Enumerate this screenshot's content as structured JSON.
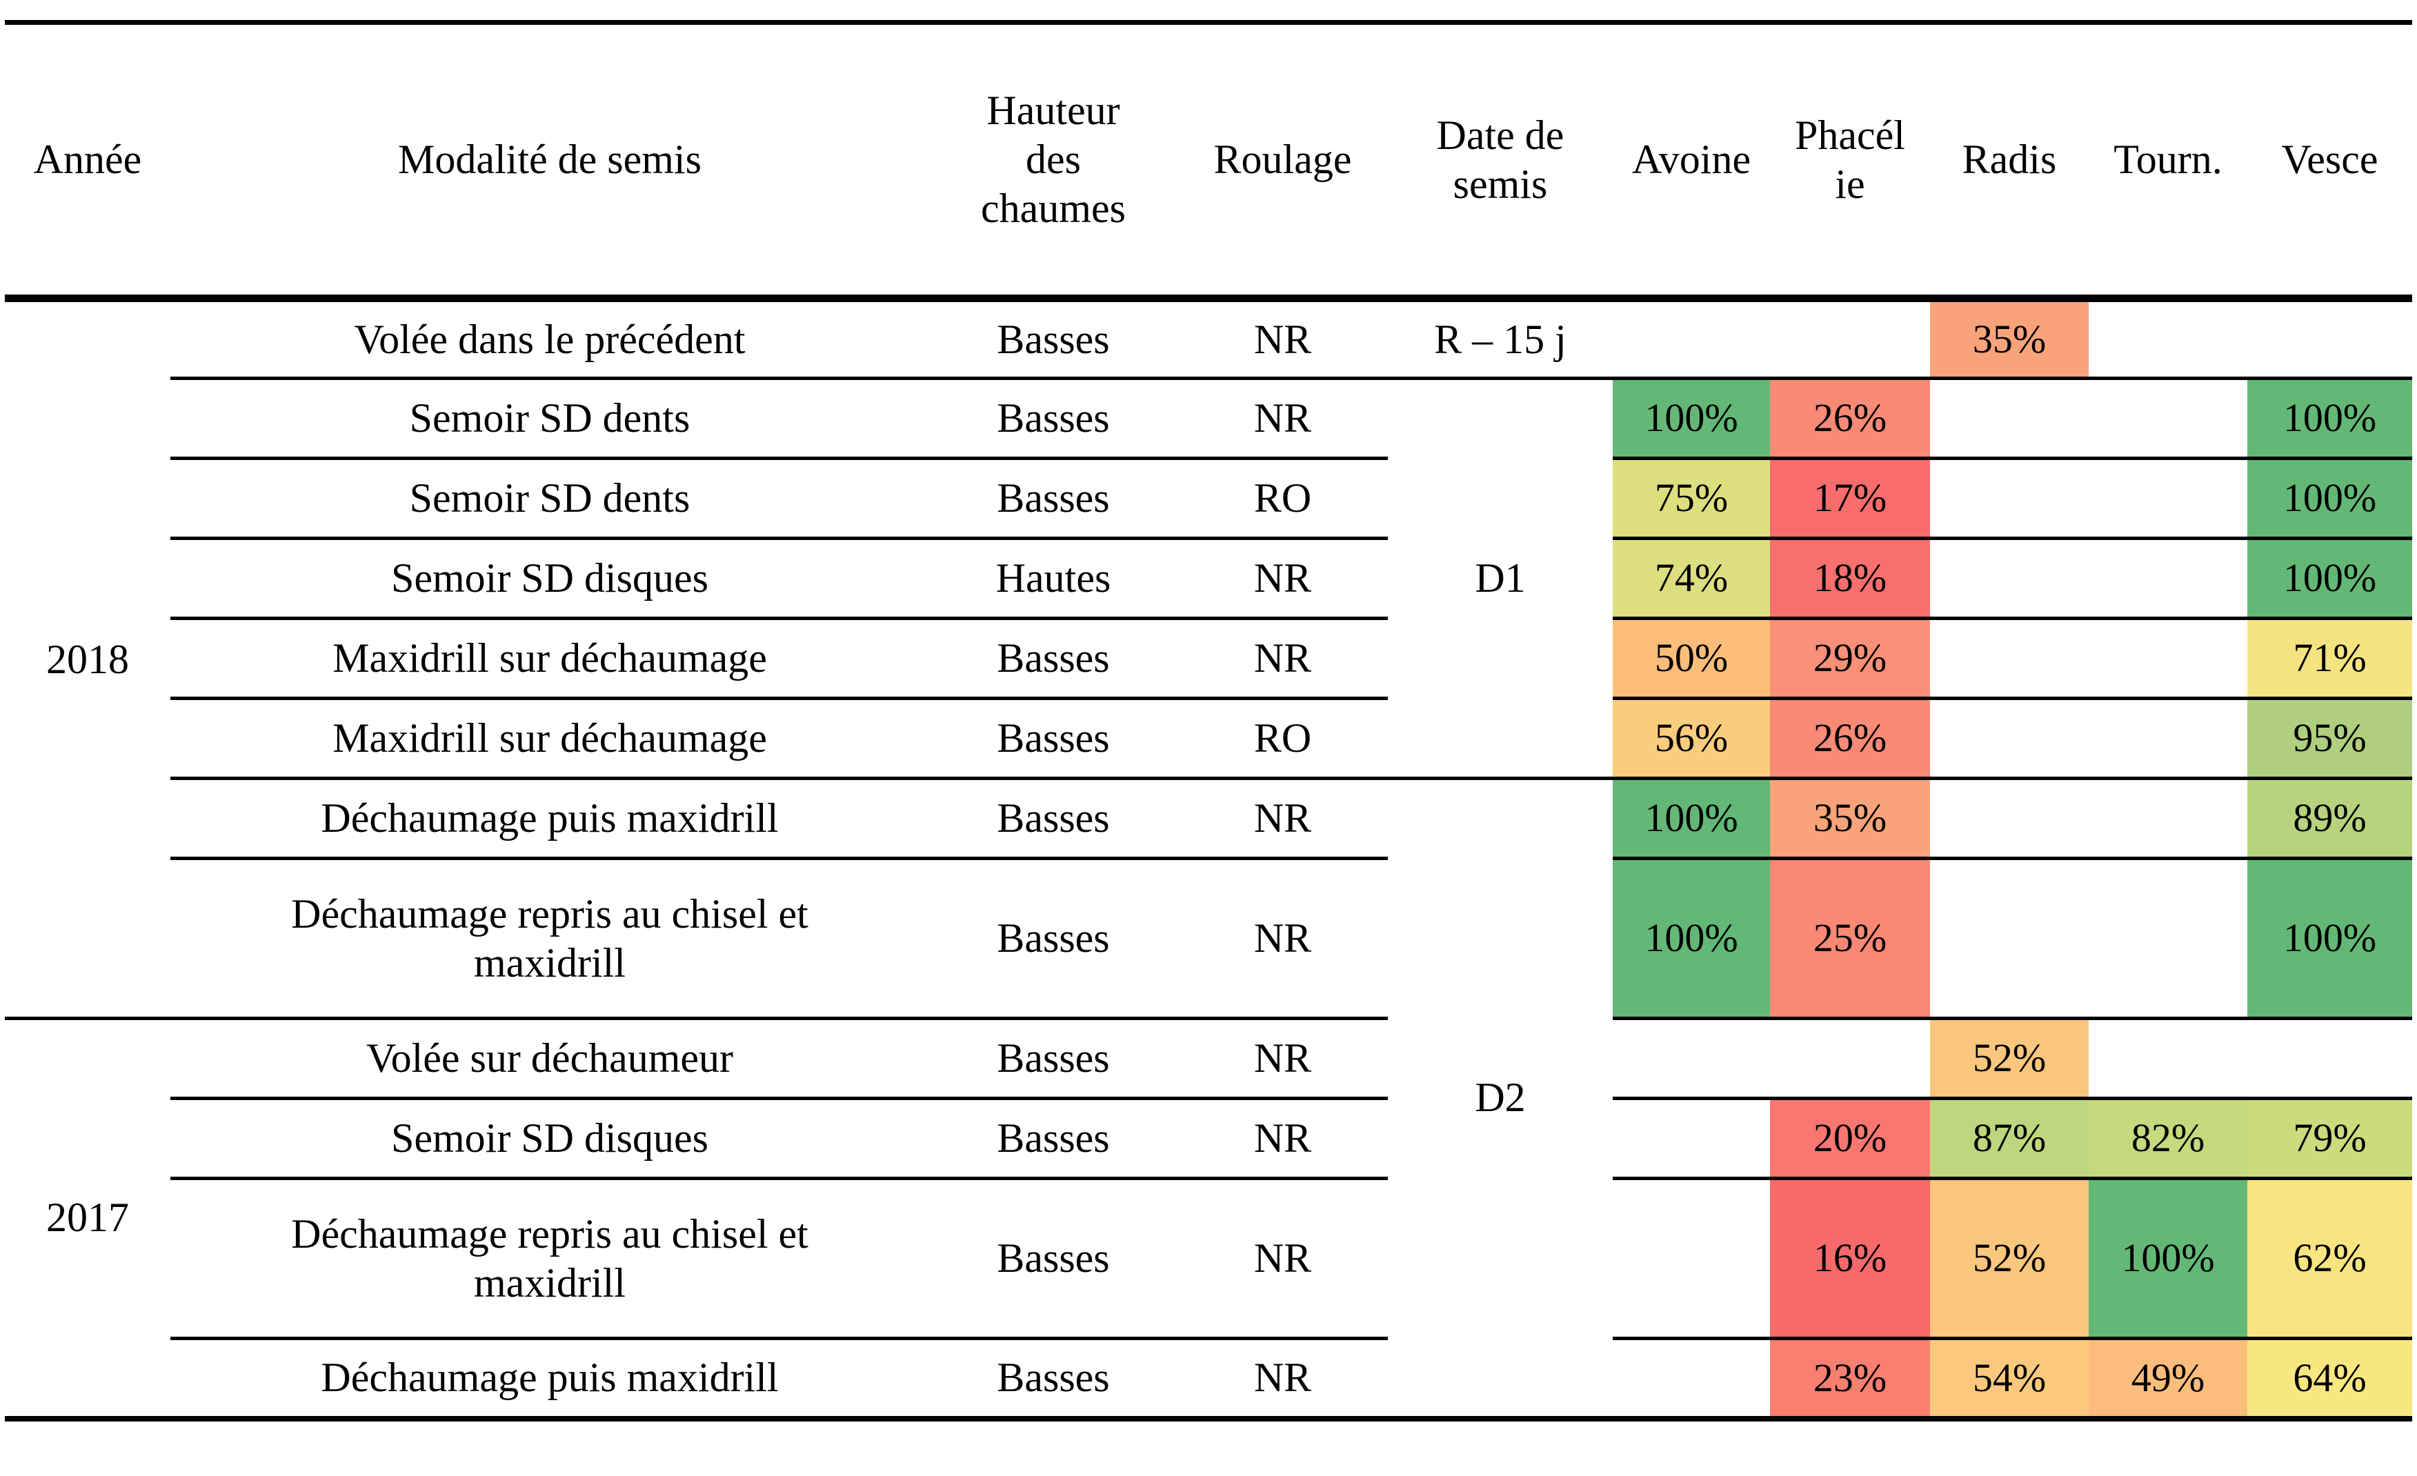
{
  "table": {
    "headers": {
      "annee": "Année",
      "modalite": "Modalité de semis",
      "hauteur": "Hauteur\ndes\nchaumes",
      "roulage": "Roulage",
      "date": "Date de\nsemis",
      "avoine": "Avoine",
      "phacelie": "Phacél\nie",
      "radis": "Radis",
      "tourn": "Tourn.",
      "vesce": "Vesce"
    },
    "year_groups": [
      {
        "label": "2018",
        "rows": 8
      },
      {
        "label": "2017",
        "rows": 4
      }
    ],
    "date_groups": [
      {
        "label": "R – 15 j",
        "rows": 1
      },
      {
        "label": "D1",
        "rows": 5
      },
      {
        "label": "D2",
        "rows": 6
      }
    ],
    "rows": [
      {
        "modalite": "Volée dans le précédent",
        "hauteur": "Basses",
        "roulage": "NR",
        "radis": {
          "value": "35%",
          "color": "#F8A379"
        }
      },
      {
        "modalite": "Semoir SD dents",
        "hauteur": "Basses",
        "roulage": "NR",
        "avoine": {
          "value": "100%",
          "color": "#63B876"
        },
        "phacelie": {
          "value": "26%",
          "color": "#F98A75"
        },
        "vesce": {
          "value": "100%",
          "color": "#63B876"
        }
      },
      {
        "modalite": "Semoir SD dents",
        "hauteur": "Basses",
        "roulage": "RO",
        "avoine": {
          "value": "75%",
          "color": "#DDDF7F"
        },
        "phacelie": {
          "value": "17%",
          "color": "#F86D6C"
        },
        "vesce": {
          "value": "100%",
          "color": "#63B876"
        }
      },
      {
        "modalite": "Semoir SD disques",
        "hauteur": "Hautes",
        "roulage": "NR",
        "avoine": {
          "value": "74%",
          "color": "#DCDE80"
        },
        "phacelie": {
          "value": "18%",
          "color": "#F8706D"
        },
        "vesce": {
          "value": "100%",
          "color": "#63B876"
        }
      },
      {
        "modalite": "Maxidrill sur déchaumage",
        "hauteur": "Basses",
        "roulage": "NR",
        "avoine": {
          "value": "50%",
          "color": "#FABD7A"
        },
        "phacelie": {
          "value": "29%",
          "color": "#FA9077"
        },
        "vesce": {
          "value": "71%",
          "color": "#F4E380"
        }
      },
      {
        "modalite": "Maxidrill sur déchaumage",
        "hauteur": "Basses",
        "roulage": "RO",
        "avoine": {
          "value": "56%",
          "color": "#FACC7D"
        },
        "phacelie": {
          "value": "26%",
          "color": "#F98A75"
        },
        "vesce": {
          "value": "95%",
          "color": "#AFCF7E"
        }
      },
      {
        "modalite": "Déchaumage puis maxidrill",
        "hauteur": "Basses",
        "roulage": "NR",
        "avoine": {
          "value": "100%",
          "color": "#63B876"
        },
        "phacelie": {
          "value": "35%",
          "color": "#F8A379"
        },
        "vesce": {
          "value": "89%",
          "color": "#B7D37E"
        }
      },
      {
        "modalite": "Déchaumage repris au chisel et\nmaxidrill",
        "hauteur": "Basses",
        "roulage": "NR",
        "avoine": {
          "value": "100%",
          "color": "#63B876"
        },
        "phacelie": {
          "value": "25%",
          "color": "#F98874"
        },
        "vesce": {
          "value": "100%",
          "color": "#63B876"
        }
      },
      {
        "modalite": "Volée sur déchaumeur",
        "hauteur": "Basses",
        "roulage": "NR",
        "radis": {
          "value": "52%",
          "color": "#FBC67D"
        }
      },
      {
        "modalite": "Semoir SD disques",
        "hauteur": "Basses",
        "roulage": "NR",
        "phacelie": {
          "value": "20%",
          "color": "#F97771"
        },
        "radis": {
          "value": "87%",
          "color": "#BED67D"
        },
        "tourn": {
          "value": "82%",
          "color": "#C6D97D"
        },
        "vesce": {
          "value": "79%",
          "color": "#CBDB7E"
        }
      },
      {
        "modalite": "Déchaumage repris au chisel et\nmaxidrill",
        "hauteur": "Basses",
        "roulage": "NR",
        "phacelie": {
          "value": "16%",
          "color": "#F8696B"
        },
        "radis": {
          "value": "52%",
          "color": "#FBC67D"
        },
        "tourn": {
          "value": "100%",
          "color": "#63B876"
        },
        "vesce": {
          "value": "62%",
          "color": "#F8E480"
        }
      },
      {
        "modalite": "Déchaumage puis maxidrill",
        "hauteur": "Basses",
        "roulage": "NR",
        "phacelie": {
          "value": "23%",
          "color": "#F97F71"
        },
        "radis": {
          "value": "54%",
          "color": "#FBC97E"
        },
        "tourn": {
          "value": "49%",
          "color": "#FBBD7C"
        },
        "vesce": {
          "value": "64%",
          "color": "#F8E681"
        }
      }
    ]
  }
}
